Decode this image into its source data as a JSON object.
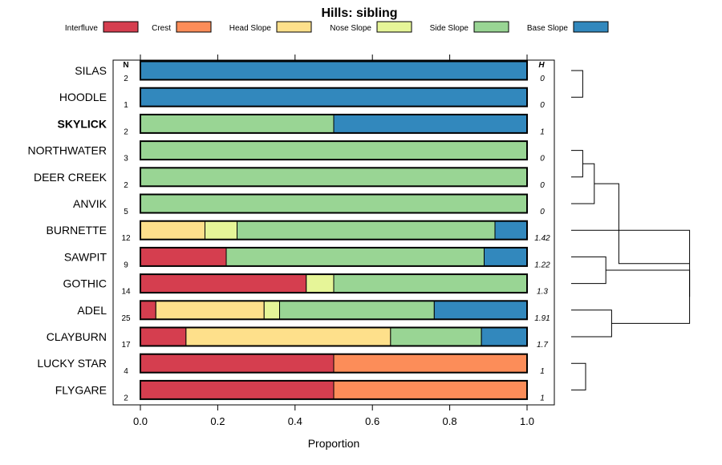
{
  "chart_data": {
    "type": "bar",
    "stacked": true,
    "orientation": "horizontal",
    "title": "Hills: sibling",
    "xlabel": "Proportion",
    "xlim": [
      0,
      1
    ],
    "xticks": [
      "0.0",
      "0.2",
      "0.4",
      "0.6",
      "0.8",
      "1.0"
    ],
    "n_header": "N",
    "h_header": "H",
    "highlight": "SKYLICK",
    "legend_position": "top",
    "series": [
      {
        "name": "Interfluve",
        "color": "#d53e4f"
      },
      {
        "name": "Crest",
        "color": "#fc8d59"
      },
      {
        "name": "Head Slope",
        "color": "#fee08b"
      },
      {
        "name": "Nose Slope",
        "color": "#e6f598"
      },
      {
        "name": "Side Slope",
        "color": "#99d594"
      },
      {
        "name": "Base Slope",
        "color": "#3288bd"
      }
    ],
    "categories": [
      {
        "label": "SILAS",
        "n": "2",
        "h": "0",
        "values": [
          0,
          0,
          0,
          0,
          0,
          1
        ]
      },
      {
        "label": "HOODLE",
        "n": "1",
        "h": "0",
        "values": [
          0,
          0,
          0,
          0,
          0,
          1
        ]
      },
      {
        "label": "SKYLICK",
        "n": "2",
        "h": "1",
        "values": [
          0,
          0,
          0,
          0,
          0.5,
          0.5
        ]
      },
      {
        "label": "NORTHWATER",
        "n": "3",
        "h": "0",
        "values": [
          0,
          0,
          0,
          0,
          1,
          0
        ]
      },
      {
        "label": "DEER CREEK",
        "n": "2",
        "h": "0",
        "values": [
          0,
          0,
          0,
          0,
          1,
          0
        ]
      },
      {
        "label": "ANVIK",
        "n": "5",
        "h": "0",
        "values": [
          0,
          0,
          0,
          0,
          1,
          0
        ]
      },
      {
        "label": "BURNETTE",
        "n": "12",
        "h": "1.42",
        "values": [
          0,
          0,
          0.167,
          0.083,
          0.667,
          0.083
        ]
      },
      {
        "label": "SAWPIT",
        "n": "9",
        "h": "1.22",
        "values": [
          0.222,
          0,
          0,
          0,
          0.667,
          0.111
        ]
      },
      {
        "label": "GOTHIC",
        "n": "14",
        "h": "1.3",
        "values": [
          0.429,
          0,
          0,
          0.071,
          0.5,
          0
        ]
      },
      {
        "label": "ADEL",
        "n": "25",
        "h": "1.91",
        "values": [
          0.04,
          0,
          0.28,
          0.04,
          0.4,
          0.24
        ]
      },
      {
        "label": "CLAYBURN",
        "n": "17",
        "h": "1.7",
        "values": [
          0.118,
          0,
          0.529,
          0,
          0.235,
          0.118
        ]
      },
      {
        "label": "LUCKY STAR",
        "n": "4",
        "h": "1",
        "values": [
          0.5,
          0.5,
          0,
          0,
          0,
          0
        ]
      },
      {
        "label": "FLYGARE",
        "n": "2",
        "h": "1",
        "values": [
          0.5,
          0.5,
          0,
          0,
          0,
          0
        ]
      }
    ],
    "dendrogram": {
      "nodes": [
        {
          "children": [
            0,
            1
          ],
          "height": 0.08
        },
        {
          "children": [
            3,
            4
          ],
          "height": 0.08
        },
        {
          "children": [
            "n1",
            5
          ],
          "height": 0.16
        },
        {
          "children": [
            7,
            8
          ],
          "height": 0.24
        },
        {
          "children": [
            9,
            10
          ],
          "height": 0.28
        },
        {
          "children": [
            "n3",
            "n4"
          ],
          "height": 0.82
        },
        {
          "children": [
            6,
            "n5"
          ],
          "height": 0.82
        },
        {
          "children": [
            "n2",
            "n6"
          ],
          "height": 0.33
        },
        {
          "children": [
            11,
            12
          ],
          "height": 0.1
        }
      ]
    }
  }
}
